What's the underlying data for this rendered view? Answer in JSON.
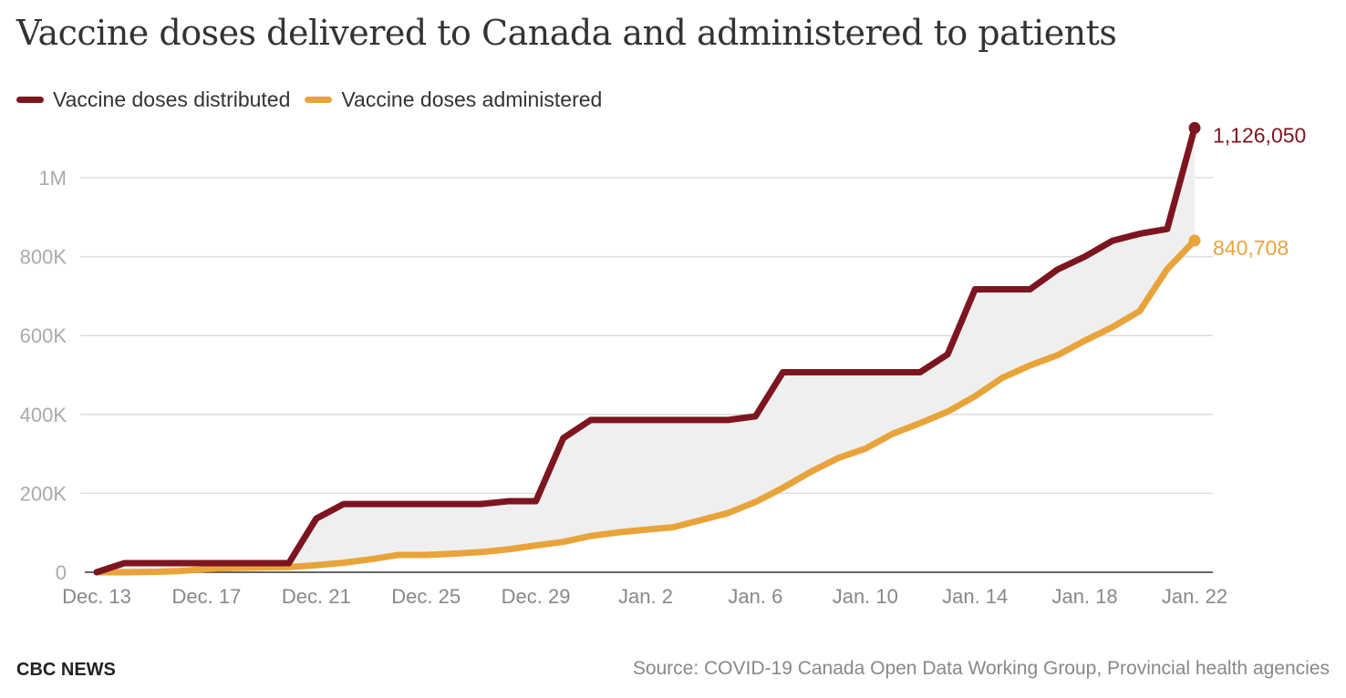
{
  "title": "Vaccine doses delivered to Canada and administered to patients",
  "legend": [
    {
      "label": "Vaccine doses distributed",
      "color": "#7d1520"
    },
    {
      "label": "Vaccine doses administered",
      "color": "#e8a43a"
    }
  ],
  "footer": {
    "brand": "CBC NEWS",
    "source": "Source: COVID-19 Canada Open Data Working Group, Provincial health agencies"
  },
  "chart_data": {
    "type": "line",
    "x_ticks": [
      "Dec. 13",
      "Dec. 17",
      "Dec. 21",
      "Dec. 25",
      "Dec. 29",
      "Jan. 2",
      "Jan. 6",
      "Jan. 10",
      "Jan. 14",
      "Jan. 18",
      "Jan. 22"
    ],
    "y_ticks": [
      {
        "value": 0,
        "label": "0"
      },
      {
        "value": 200000,
        "label": "200K"
      },
      {
        "value": 400000,
        "label": "400K"
      },
      {
        "value": 600000,
        "label": "600K"
      },
      {
        "value": 800000,
        "label": "800K"
      },
      {
        "value": 1000000,
        "label": "1M"
      }
    ],
    "ylim": [
      0,
      1126050
    ],
    "x": [
      "Dec. 13",
      "Dec. 14",
      "Dec. 15",
      "Dec. 16",
      "Dec. 17",
      "Dec. 18",
      "Dec. 19",
      "Dec. 20",
      "Dec. 21",
      "Dec. 22",
      "Dec. 23",
      "Dec. 24",
      "Dec. 25",
      "Dec. 26",
      "Dec. 27",
      "Dec. 28",
      "Dec. 29",
      "Dec. 30",
      "Dec. 31",
      "Jan. 1",
      "Jan. 2",
      "Jan. 3",
      "Jan. 4",
      "Jan. 5",
      "Jan. 6",
      "Jan. 7",
      "Jan. 8",
      "Jan. 9",
      "Jan. 10",
      "Jan. 11",
      "Jan. 12",
      "Jan. 13",
      "Jan. 14",
      "Jan. 15",
      "Jan. 16",
      "Jan. 17",
      "Jan. 18",
      "Jan. 19",
      "Jan. 20",
      "Jan. 21",
      "Jan. 22"
    ],
    "series": [
      {
        "name": "Vaccine doses distributed",
        "color": "#7d1520",
        "end_label": "1,126,050",
        "values": [
          0,
          23000,
          23000,
          23000,
          23000,
          23000,
          23000,
          23000,
          136000,
          173000,
          173000,
          173000,
          173000,
          173000,
          173000,
          180000,
          180000,
          340000,
          386000,
          386000,
          386000,
          386000,
          386000,
          386000,
          395000,
          507000,
          507000,
          507000,
          507000,
          507000,
          507000,
          552000,
          717000,
          717000,
          717000,
          767000,
          800000,
          840000,
          858000,
          870000,
          1126050
        ]
      },
      {
        "name": "Vaccine doses administered",
        "color": "#e8a43a",
        "end_label": "840,708",
        "values": [
          0,
          0,
          1000,
          3000,
          8000,
          11000,
          12000,
          13000,
          18000,
          24000,
          33000,
          44000,
          44000,
          47000,
          51000,
          58000,
          68000,
          77000,
          92000,
          101000,
          108000,
          114000,
          132000,
          150000,
          178000,
          214000,
          254000,
          289000,
          313000,
          351000,
          378000,
          407000,
          446000,
          493000,
          524000,
          550000,
          587000,
          621000,
          662000,
          768000,
          840708
        ]
      }
    ]
  }
}
